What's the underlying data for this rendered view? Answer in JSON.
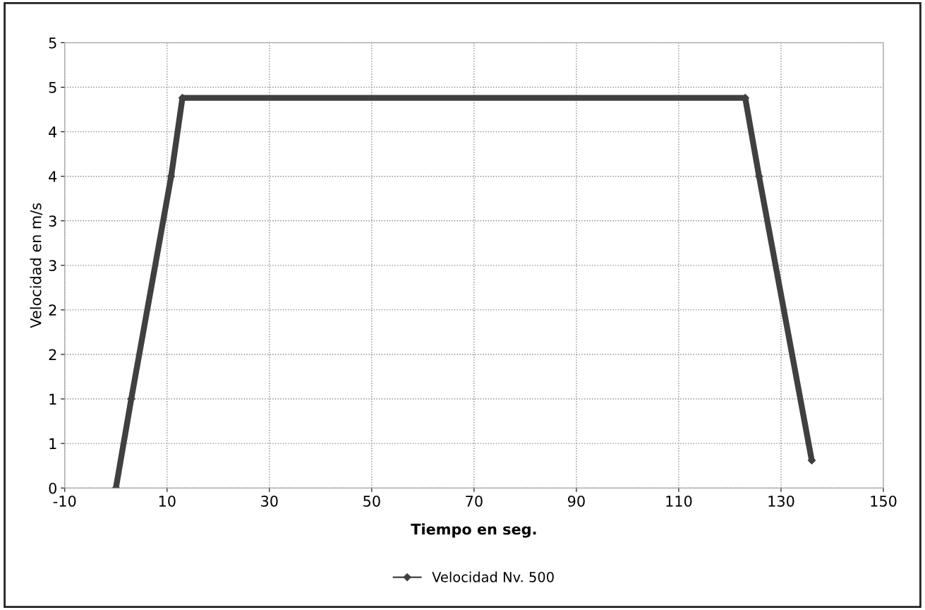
{
  "chart_data": {
    "type": "line",
    "xlabel": "Tiempo en seg.",
    "ylabel": "Velocidad en m/s",
    "x": [
      0,
      3,
      10.8,
      13,
      123,
      125.7,
      136
    ],
    "series": [
      {
        "name": "Velocidad Nv. 500",
        "color": "#404040",
        "values": [
          0,
          1.0,
          3.5,
          4.38,
          4.38,
          3.5,
          0.31
        ]
      }
    ],
    "xlim": [
      -10,
      150
    ],
    "xticks": [
      -10,
      10,
      30,
      50,
      70,
      90,
      110,
      130,
      150
    ],
    "ylim": [
      0,
      5
    ],
    "yticks": [
      0,
      {
        "value": 0.5,
        "label": "1"
      },
      1,
      {
        "value": 1.5,
        "label": "2"
      },
      2,
      {
        "value": 2.5,
        "label": "3"
      },
      3,
      {
        "value": 3.5,
        "label": "4"
      },
      4,
      {
        "value": 4.5,
        "label": "5"
      },
      5
    ],
    "grid": true,
    "legend": "bottom",
    "marker": "diamond",
    "line_style": "solid"
  }
}
